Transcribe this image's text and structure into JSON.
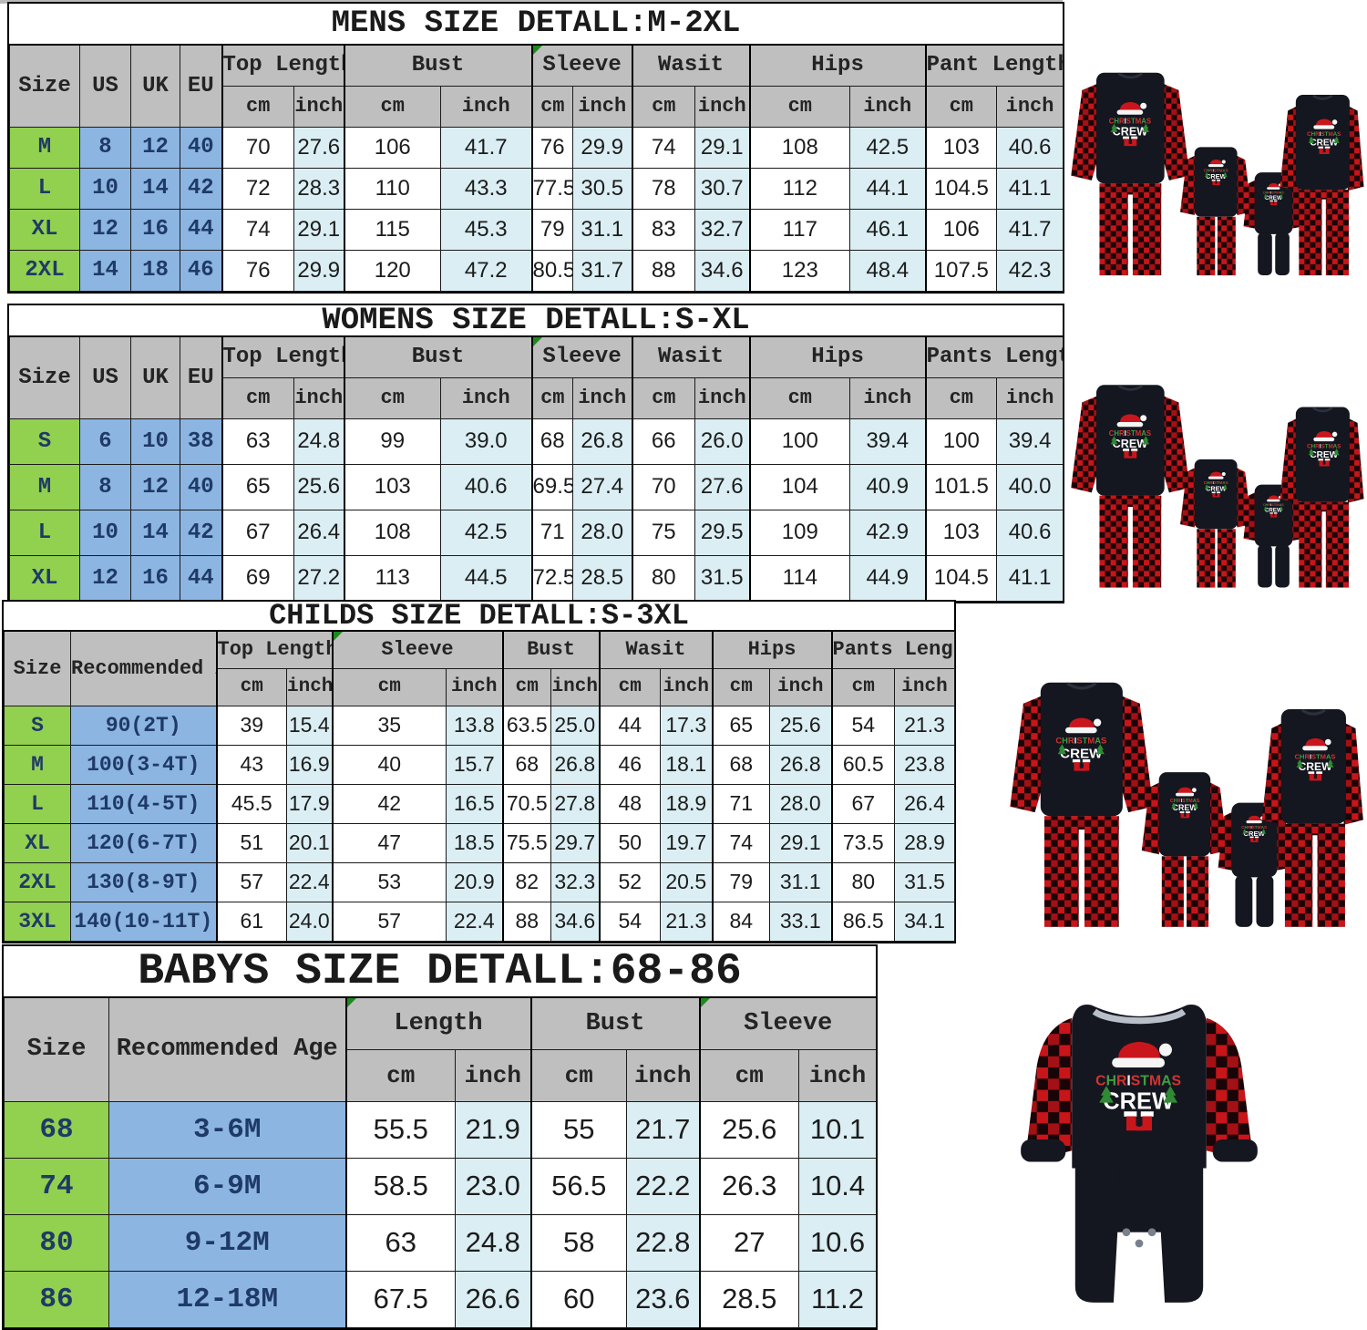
{
  "colors": {
    "size_green": "#92d050",
    "left_blue": "#8cb5e2",
    "inch_lightblue": "#daeef3",
    "header_gray": "#bfbfbf",
    "navy_text": "#1f3a66",
    "plaid_red": "#c8151a",
    "fabric_dark": "#14171f",
    "flag_green": "#1e8a1e"
  },
  "sections": [
    {
      "id": "mens",
      "title": "MENS SIZE DETALL:M-2XL",
      "left_headers": [
        "Size",
        "US",
        "UK",
        "EU"
      ],
      "units": [
        "cm",
        "inch"
      ],
      "groups": [
        {
          "label": "Top Length",
          "flag": false
        },
        {
          "label": "Bust",
          "flag": false
        },
        {
          "label": "Sleeve",
          "flag": true
        },
        {
          "label": "Wasit",
          "flag": false
        },
        {
          "label": "Hips",
          "flag": false
        },
        {
          "label": "Pant Length",
          "flag": false
        }
      ],
      "rows": [
        [
          "M",
          "8",
          "12",
          "40",
          "70",
          "27.6",
          "106",
          "41.7",
          "76",
          "29.9",
          "74",
          "29.1",
          "108",
          "42.5",
          "103",
          "40.6"
        ],
        [
          "L",
          "10",
          "14",
          "42",
          "72",
          "28.3",
          "110",
          "43.3",
          "77.5",
          "30.5",
          "78",
          "30.7",
          "112",
          "44.1",
          "104.5",
          "41.1"
        ],
        [
          "XL",
          "12",
          "16",
          "44",
          "74",
          "29.1",
          "115",
          "45.3",
          "79",
          "31.1",
          "83",
          "32.7",
          "117",
          "46.1",
          "106",
          "41.7"
        ],
        [
          "2XL",
          "14",
          "18",
          "46",
          "76",
          "29.9",
          "120",
          "47.2",
          "80.5",
          "31.7",
          "88",
          "34.6",
          "123",
          "48.4",
          "107.5",
          "42.3"
        ]
      ]
    },
    {
      "id": "womens",
      "title": "WOMENS SIZE DETALL:S-XL",
      "left_headers": [
        "Size",
        "US",
        "UK",
        "EU"
      ],
      "units": [
        "cm",
        "inch"
      ],
      "groups": [
        {
          "label": "Top Length",
          "flag": false
        },
        {
          "label": "Bust",
          "flag": false
        },
        {
          "label": "Sleeve",
          "flag": true
        },
        {
          "label": "Wasit",
          "flag": false
        },
        {
          "label": "Hips",
          "flag": false
        },
        {
          "label": "Pants Length",
          "flag": false
        }
      ],
      "rows": [
        [
          "S",
          "6",
          "10",
          "38",
          "63",
          "24.8",
          "99",
          "39.0",
          "68",
          "26.8",
          "66",
          "26.0",
          "100",
          "39.4",
          "100",
          "39.4"
        ],
        [
          "M",
          "8",
          "12",
          "40",
          "65",
          "25.6",
          "103",
          "40.6",
          "69.5",
          "27.4",
          "70",
          "27.6",
          "104",
          "40.9",
          "101.5",
          "40.0"
        ],
        [
          "L",
          "10",
          "14",
          "42",
          "67",
          "26.4",
          "108",
          "42.5",
          "71",
          "28.0",
          "75",
          "29.5",
          "109",
          "42.9",
          "103",
          "40.6"
        ],
        [
          "XL",
          "12",
          "16",
          "44",
          "69",
          "27.2",
          "113",
          "44.5",
          "72.5",
          "28.5",
          "80",
          "31.5",
          "114",
          "44.9",
          "104.5",
          "41.1"
        ]
      ]
    },
    {
      "id": "childs",
      "title": "CHILDS SIZE DETALL:S-3XL",
      "left_headers": [
        "Size",
        "Recommended Age"
      ],
      "units": [
        "cm",
        "inch"
      ],
      "groups": [
        {
          "label": "Top Length",
          "flag": false
        },
        {
          "label": "Sleeve",
          "flag": true
        },
        {
          "label": "Bust",
          "flag": false
        },
        {
          "label": "Wasit",
          "flag": false
        },
        {
          "label": "Hips",
          "flag": false
        },
        {
          "label": "Pants Length",
          "flag": false
        }
      ],
      "rows": [
        [
          "S",
          "90(2T)",
          "39",
          "15.4",
          "35",
          "13.8",
          "63.5",
          "25.0",
          "44",
          "17.3",
          "65",
          "25.6",
          "54",
          "21.3"
        ],
        [
          "M",
          "100(3-4T)",
          "43",
          "16.9",
          "40",
          "15.7",
          "68",
          "26.8",
          "46",
          "18.1",
          "68",
          "26.8",
          "60.5",
          "23.8"
        ],
        [
          "L",
          "110(4-5T)",
          "45.5",
          "17.9",
          "42",
          "16.5",
          "70.5",
          "27.8",
          "48",
          "18.9",
          "71",
          "28.0",
          "67",
          "26.4"
        ],
        [
          "XL",
          "120(6-7T)",
          "51",
          "20.1",
          "47",
          "18.5",
          "75.5",
          "29.7",
          "50",
          "19.7",
          "74",
          "29.1",
          "73.5",
          "28.9"
        ],
        [
          "2XL",
          "130(8-9T)",
          "57",
          "22.4",
          "53",
          "20.9",
          "82",
          "32.3",
          "52",
          "20.5",
          "79",
          "31.1",
          "80",
          "31.5"
        ],
        [
          "3XL",
          "140(10-11T)",
          "61",
          "24.0",
          "57",
          "22.4",
          "88",
          "34.6",
          "54",
          "21.3",
          "84",
          "33.1",
          "86.5",
          "34.1"
        ]
      ]
    },
    {
      "id": "babys",
      "title": "BABYS SIZE DETALL:68-86",
      "left_headers": [
        "Size",
        "Recommended Age"
      ],
      "units": [
        "cm",
        "inch"
      ],
      "groups": [
        {
          "label": "Length",
          "flag": true
        },
        {
          "label": "Bust",
          "flag": false
        },
        {
          "label": "Sleeve",
          "flag": true
        }
      ],
      "rows": [
        [
          "68",
          "3-6M",
          "55.5",
          "21.9",
          "55",
          "21.7",
          "25.6",
          "10.1"
        ],
        [
          "74",
          "6-9M",
          "58.5",
          "23.0",
          "56.5",
          "22.2",
          "26.3",
          "10.4"
        ],
        [
          "80",
          "9-12M",
          "63",
          "24.8",
          "58",
          "22.8",
          "27",
          "10.6"
        ],
        [
          "86",
          "12-18M",
          "67.5",
          "26.6",
          "60",
          "23.6",
          "28.5",
          "11.2"
        ]
      ]
    }
  ],
  "products": {
    "shirt_text_top": "CHRISTMAS",
    "shirt_text_bottom": "CREW"
  }
}
